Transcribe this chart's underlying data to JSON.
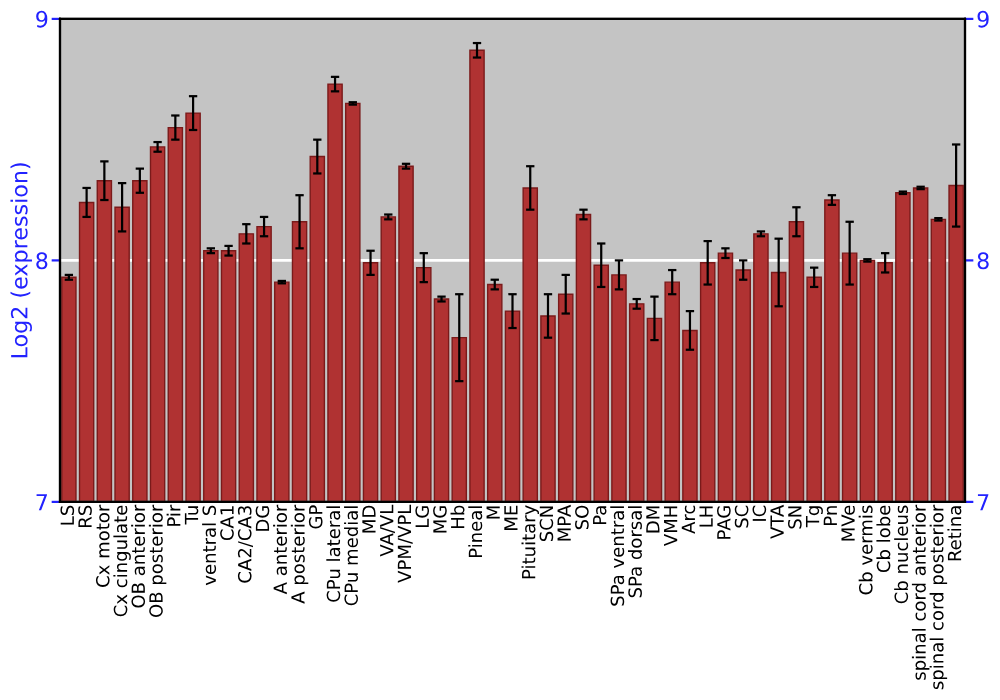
{
  "chart_data": {
    "type": "bar",
    "ylabel": "Log2 (expression)",
    "categories": [
      "LS",
      "RS",
      "Cx motor",
      "Cx cingulate",
      "OB anterior",
      "OB posterior",
      "Pir",
      "Tu",
      "ventral S",
      "CA1",
      "CA2/CA3",
      "DG",
      "A anterior",
      "A posterior",
      "GP",
      "CPu lateral",
      "CPu medial",
      "MD",
      "VA/VL",
      "VPM/VPL",
      "LG",
      "MG",
      "Hb",
      "Pineal",
      "M",
      "ME",
      "Pituitary",
      "SCN",
      "MPA",
      "SO",
      "Pa",
      "SPa ventral",
      "SPa dorsal",
      "DM",
      "VMH",
      "Arc",
      "LH",
      "PAG",
      "SC",
      "IC",
      "VTA",
      "SN",
      "Tg",
      "Pn",
      "MVe",
      "Cb vermis",
      "Cb lobe",
      "Cb nucleus",
      "spinal cord anterior",
      "spinal cord posterior",
      "Retina"
    ],
    "values": [
      7.93,
      8.24,
      8.33,
      8.22,
      8.33,
      8.47,
      8.55,
      8.61,
      8.04,
      8.04,
      8.11,
      8.14,
      7.91,
      8.16,
      8.43,
      8.73,
      8.65,
      7.99,
      8.18,
      8.39,
      7.97,
      7.84,
      7.68,
      8.87,
      7.9,
      7.79,
      8.3,
      7.77,
      7.86,
      8.19,
      7.98,
      7.94,
      7.82,
      7.76,
      7.91,
      7.71,
      7.99,
      8.03,
      7.96,
      8.11,
      7.95,
      8.16,
      7.93,
      8.25,
      8.03,
      8.0,
      7.99,
      8.28,
      8.3,
      8.17,
      8.31
    ],
    "errors": [
      0.01,
      0.06,
      0.08,
      0.1,
      0.05,
      0.02,
      0.05,
      0.07,
      0.01,
      0.02,
      0.04,
      0.04,
      0.005,
      0.11,
      0.07,
      0.03,
      0.005,
      0.05,
      0.01,
      0.01,
      0.06,
      0.01,
      0.18,
      0.03,
      0.02,
      0.07,
      0.09,
      0.09,
      0.08,
      0.02,
      0.09,
      0.06,
      0.02,
      0.09,
      0.05,
      0.08,
      0.09,
      0.02,
      0.04,
      0.01,
      0.14,
      0.06,
      0.04,
      0.02,
      0.13,
      0.005,
      0.04,
      0.005,
      0.005,
      0.005,
      0.17
    ],
    "color": "#b03232",
    "ylim": [
      7,
      9
    ],
    "yticks": [
      7,
      8,
      9
    ],
    "y2lim": [
      7,
      9
    ],
    "y2ticks": [
      7,
      8,
      9
    ],
    "ref_lines": [
      {
        "axis": "y",
        "value": 8,
        "color": "#ffffff"
      }
    ],
    "grid": false,
    "legend": false
  }
}
